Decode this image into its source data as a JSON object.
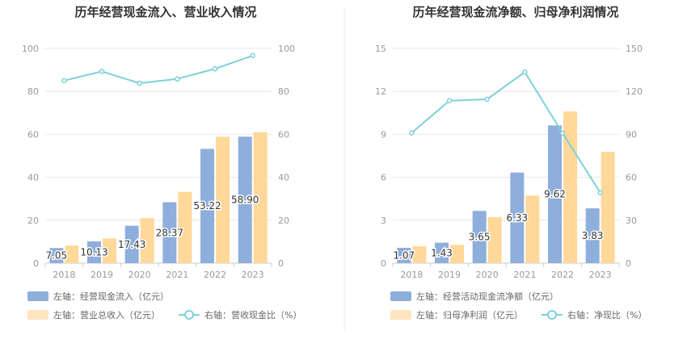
{
  "colors": {
    "bar_primary": "#8eaedc",
    "bar_secondary": "#ffd89a",
    "line": "#7fd0d9",
    "grid": "#e6e6e6",
    "divider": "#eeeeee"
  },
  "chart_data": [
    {
      "type": "bar",
      "title": "历年经营现金流入、营业收入情况",
      "categories": [
        "2018",
        "2019",
        "2020",
        "2021",
        "2022",
        "2023"
      ],
      "left_axis": {
        "min": 0,
        "max": 100,
        "ticks": [
          "0",
          "20",
          "40",
          "60",
          "80",
          "100"
        ]
      },
      "right_axis": {
        "min": 0,
        "max": 100,
        "ticks": [
          "0",
          "20",
          "40",
          "60",
          "80",
          "100"
        ]
      },
      "series": [
        {
          "name": "左轴：经营现金流入（亿元）",
          "kind": "bar",
          "axis": "left",
          "values": [
            7.05,
            10.13,
            17.43,
            28.37,
            53.22,
            58.9
          ],
          "labels": [
            "7.05",
            "10.13",
            "17.43",
            "28.37",
            "53.22",
            "58.90"
          ]
        },
        {
          "name": "左轴：营业总收入（亿元）",
          "kind": "bar",
          "axis": "left",
          "values": [
            8.2,
            11.5,
            21.0,
            33.2,
            58.9,
            61.0
          ]
        },
        {
          "name": "右轴：营收现金比（%）",
          "kind": "line",
          "axis": "right",
          "values": [
            85.0,
            89.3,
            83.8,
            85.8,
            90.5,
            96.7
          ]
        }
      ]
    },
    {
      "type": "bar",
      "title": "历年经营现金流净额、归母净利润情况",
      "categories": [
        "2018",
        "2019",
        "2020",
        "2021",
        "2022",
        "2023"
      ],
      "left_axis": {
        "min": 0,
        "max": 15,
        "ticks": [
          "0",
          "3",
          "6",
          "9",
          "12",
          "15"
        ]
      },
      "right_axis": {
        "min": 0,
        "max": 150,
        "ticks": [
          "0",
          "30",
          "60",
          "90",
          "120",
          "150"
        ]
      },
      "series": [
        {
          "name": "左轴：经营活动现金流净额（亿元）",
          "kind": "bar",
          "axis": "left",
          "values": [
            1.07,
            1.43,
            3.65,
            6.33,
            9.62,
            3.83
          ],
          "labels": [
            "1.07",
            "1.43",
            "3.65",
            "6.33",
            "9.62",
            "3.83"
          ]
        },
        {
          "name": "左轴：归母净利润（亿元）",
          "kind": "bar",
          "axis": "left",
          "values": [
            1.18,
            1.28,
            3.22,
            4.72,
            10.6,
            7.78
          ]
        },
        {
          "name": "右轴：净现比（%）",
          "kind": "line",
          "axis": "right",
          "values": [
            91.0,
            113.5,
            114.5,
            133.5,
            90.8,
            49.3
          ]
        }
      ]
    }
  ]
}
